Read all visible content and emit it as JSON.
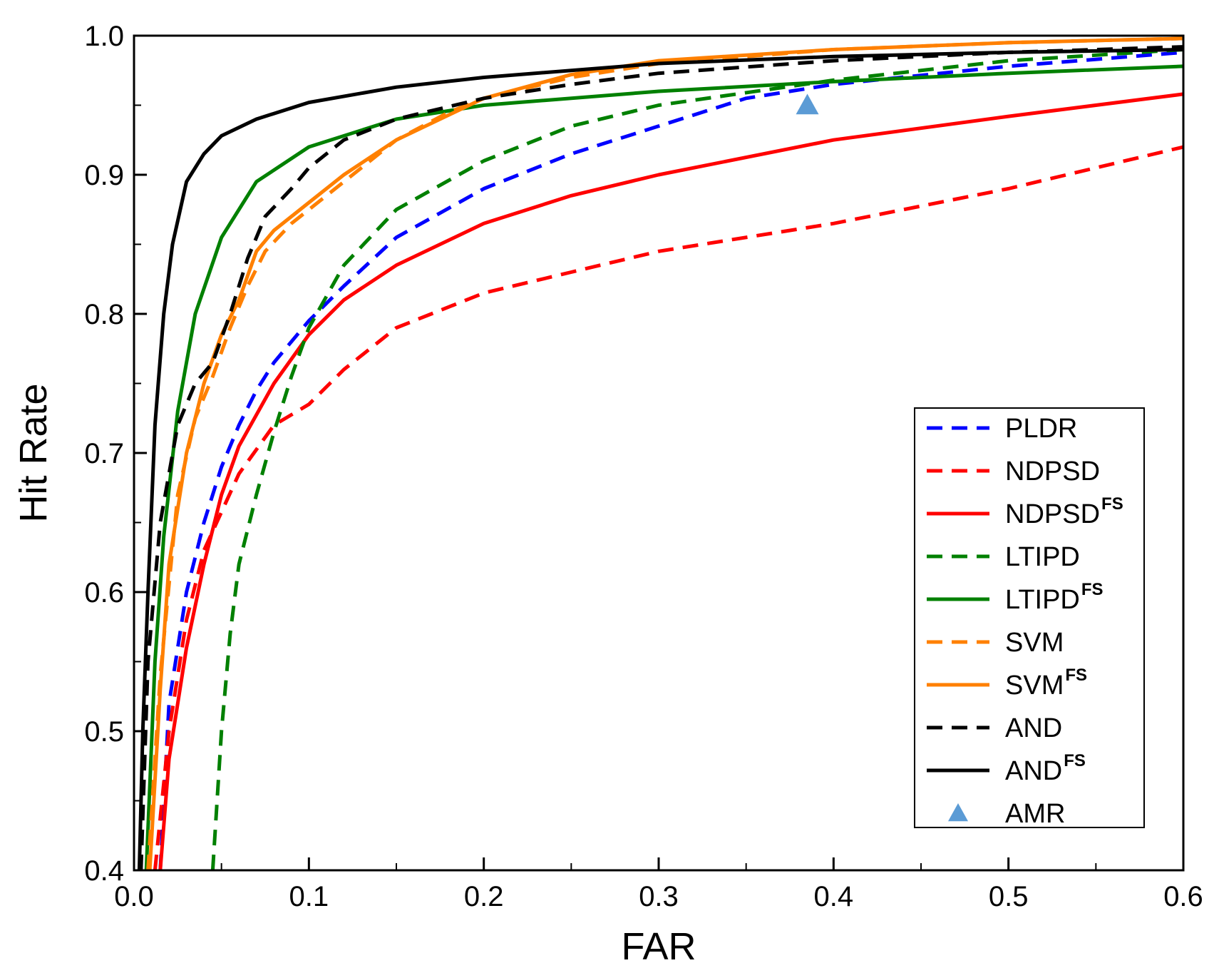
{
  "chart_data": {
    "type": "line",
    "title": "",
    "xlabel": "FAR",
    "ylabel": "Hit Rate",
    "xlim": [
      0.0,
      0.6
    ],
    "ylim": [
      0.4,
      1.0
    ],
    "grid": false,
    "legend_position": "bottom-right",
    "x_ticks": [
      "0.0",
      "0.1",
      "0.2",
      "0.3",
      "0.4",
      "0.5",
      "0.6"
    ],
    "y_ticks": [
      "0.4",
      "0.5",
      "0.6",
      "0.7",
      "0.8",
      "0.9",
      "1.0"
    ],
    "series": [
      {
        "name": "PLDR",
        "sup": "",
        "color": "#0000ff",
        "style": "dashed",
        "points": [
          [
            0.015,
            0.4
          ],
          [
            0.02,
            0.52
          ],
          [
            0.03,
            0.6
          ],
          [
            0.04,
            0.65
          ],
          [
            0.05,
            0.69
          ],
          [
            0.06,
            0.72
          ],
          [
            0.07,
            0.745
          ],
          [
            0.08,
            0.765
          ],
          [
            0.1,
            0.795
          ],
          [
            0.12,
            0.82
          ],
          [
            0.15,
            0.855
          ],
          [
            0.2,
            0.89
          ],
          [
            0.25,
            0.915
          ],
          [
            0.3,
            0.935
          ],
          [
            0.35,
            0.955
          ],
          [
            0.4,
            0.965
          ],
          [
            0.5,
            0.978
          ],
          [
            0.6,
            0.988
          ]
        ]
      },
      {
        "name": "NDPSD",
        "sup": "",
        "color": "#ff0000",
        "style": "dashed",
        "points": [
          [
            0.012,
            0.4
          ],
          [
            0.02,
            0.5
          ],
          [
            0.03,
            0.58
          ],
          [
            0.04,
            0.63
          ],
          [
            0.06,
            0.685
          ],
          [
            0.08,
            0.72
          ],
          [
            0.1,
            0.735
          ],
          [
            0.12,
            0.76
          ],
          [
            0.15,
            0.79
          ],
          [
            0.2,
            0.815
          ],
          [
            0.25,
            0.83
          ],
          [
            0.3,
            0.845
          ],
          [
            0.4,
            0.865
          ],
          [
            0.5,
            0.89
          ],
          [
            0.6,
            0.92
          ]
        ]
      },
      {
        "name": "NDPSD",
        "sup": "FS",
        "color": "#ff0000",
        "style": "solid",
        "points": [
          [
            0.015,
            0.4
          ],
          [
            0.02,
            0.48
          ],
          [
            0.03,
            0.56
          ],
          [
            0.04,
            0.62
          ],
          [
            0.05,
            0.67
          ],
          [
            0.06,
            0.705
          ],
          [
            0.08,
            0.75
          ],
          [
            0.1,
            0.785
          ],
          [
            0.12,
            0.81
          ],
          [
            0.15,
            0.835
          ],
          [
            0.2,
            0.865
          ],
          [
            0.25,
            0.885
          ],
          [
            0.3,
            0.9
          ],
          [
            0.4,
            0.925
          ],
          [
            0.5,
            0.942
          ],
          [
            0.6,
            0.958
          ]
        ]
      },
      {
        "name": "LTIPD",
        "sup": "",
        "color": "#008000",
        "style": "dashed",
        "points": [
          [
            0.045,
            0.4
          ],
          [
            0.05,
            0.5
          ],
          [
            0.055,
            0.57
          ],
          [
            0.06,
            0.62
          ],
          [
            0.07,
            0.67
          ],
          [
            0.08,
            0.715
          ],
          [
            0.09,
            0.755
          ],
          [
            0.1,
            0.79
          ],
          [
            0.12,
            0.835
          ],
          [
            0.15,
            0.875
          ],
          [
            0.2,
            0.91
          ],
          [
            0.25,
            0.935
          ],
          [
            0.3,
            0.95
          ],
          [
            0.4,
            0.968
          ],
          [
            0.5,
            0.982
          ],
          [
            0.6,
            0.99
          ]
        ]
      },
      {
        "name": "LTIPD",
        "sup": "FS",
        "color": "#008000",
        "style": "solid",
        "points": [
          [
            0.007,
            0.4
          ],
          [
            0.012,
            0.55
          ],
          [
            0.017,
            0.64
          ],
          [
            0.025,
            0.73
          ],
          [
            0.035,
            0.8
          ],
          [
            0.05,
            0.855
          ],
          [
            0.07,
            0.895
          ],
          [
            0.1,
            0.92
          ],
          [
            0.15,
            0.94
          ],
          [
            0.2,
            0.95
          ],
          [
            0.3,
            0.96
          ],
          [
            0.4,
            0.967
          ],
          [
            0.5,
            0.973
          ],
          [
            0.6,
            0.978
          ]
        ]
      },
      {
        "name": "SVM",
        "sup": "",
        "color": "#ff8000",
        "style": "dashed",
        "points": [
          [
            0.008,
            0.4
          ],
          [
            0.015,
            0.54
          ],
          [
            0.025,
            0.67
          ],
          [
            0.035,
            0.725
          ],
          [
            0.045,
            0.755
          ],
          [
            0.055,
            0.79
          ],
          [
            0.065,
            0.82
          ],
          [
            0.075,
            0.845
          ],
          [
            0.09,
            0.865
          ],
          [
            0.11,
            0.885
          ],
          [
            0.13,
            0.905
          ],
          [
            0.15,
            0.925
          ],
          [
            0.18,
            0.945
          ],
          [
            0.2,
            0.955
          ],
          [
            0.25,
            0.97
          ],
          [
            0.3,
            0.98
          ],
          [
            0.4,
            0.99
          ],
          [
            0.5,
            0.995
          ],
          [
            0.6,
            0.998
          ]
        ]
      },
      {
        "name": "SVM",
        "sup": "FS",
        "color": "#ff8000",
        "style": "solid",
        "points": [
          [
            0.009,
            0.4
          ],
          [
            0.015,
            0.53
          ],
          [
            0.02,
            0.62
          ],
          [
            0.03,
            0.7
          ],
          [
            0.04,
            0.75
          ],
          [
            0.05,
            0.785
          ],
          [
            0.06,
            0.81
          ],
          [
            0.07,
            0.845
          ],
          [
            0.08,
            0.86
          ],
          [
            0.1,
            0.88
          ],
          [
            0.12,
            0.9
          ],
          [
            0.15,
            0.925
          ],
          [
            0.2,
            0.955
          ],
          [
            0.25,
            0.972
          ],
          [
            0.3,
            0.982
          ],
          [
            0.4,
            0.99
          ],
          [
            0.5,
            0.995
          ],
          [
            0.6,
            0.998
          ]
        ]
      },
      {
        "name": "AND",
        "sup": "",
        "color": "#000000",
        "style": "dashed",
        "points": [
          [
            0.004,
            0.4
          ],
          [
            0.008,
            0.55
          ],
          [
            0.015,
            0.65
          ],
          [
            0.025,
            0.72
          ],
          [
            0.035,
            0.75
          ],
          [
            0.045,
            0.765
          ],
          [
            0.055,
            0.8
          ],
          [
            0.065,
            0.84
          ],
          [
            0.075,
            0.87
          ],
          [
            0.09,
            0.89
          ],
          [
            0.1,
            0.905
          ],
          [
            0.12,
            0.925
          ],
          [
            0.15,
            0.94
          ],
          [
            0.2,
            0.955
          ],
          [
            0.25,
            0.965
          ],
          [
            0.3,
            0.973
          ],
          [
            0.4,
            0.982
          ],
          [
            0.5,
            0.988
          ],
          [
            0.6,
            0.992
          ]
        ]
      },
      {
        "name": "AND",
        "sup": "FS",
        "color": "#000000",
        "style": "solid",
        "points": [
          [
            0.003,
            0.4
          ],
          [
            0.005,
            0.5
          ],
          [
            0.008,
            0.6
          ],
          [
            0.012,
            0.72
          ],
          [
            0.017,
            0.8
          ],
          [
            0.022,
            0.85
          ],
          [
            0.03,
            0.895
          ],
          [
            0.04,
            0.915
          ],
          [
            0.05,
            0.928
          ],
          [
            0.07,
            0.94
          ],
          [
            0.1,
            0.952
          ],
          [
            0.15,
            0.963
          ],
          [
            0.2,
            0.97
          ],
          [
            0.3,
            0.98
          ],
          [
            0.4,
            0.985
          ],
          [
            0.5,
            0.988
          ],
          [
            0.6,
            0.99
          ]
        ]
      }
    ],
    "markers": [
      {
        "name": "AMR",
        "color": "#5b9bd5",
        "shape": "triangle",
        "x": 0.385,
        "y": 0.95
      }
    ]
  }
}
